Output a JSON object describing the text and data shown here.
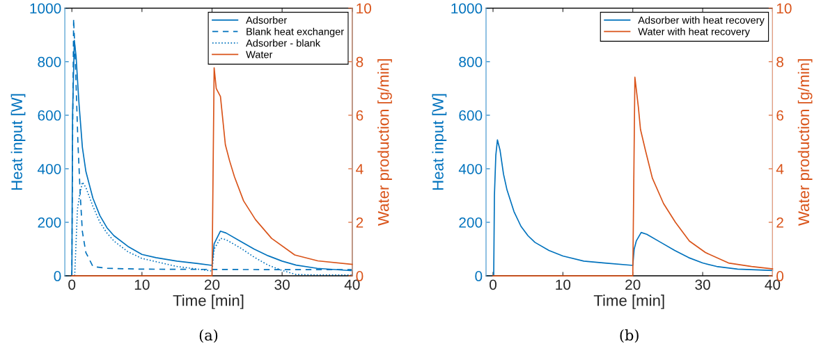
{
  "chart_data": [
    {
      "type": "line",
      "xlabel": "Time [min]",
      "ylabel": "Heat input [W]",
      "y2label": "Water production [g/min]",
      "xlim": [
        -1,
        40
      ],
      "xticks": [
        0,
        10,
        20,
        30,
        40
      ],
      "ylim": [
        0,
        1000
      ],
      "yticks": [
        0,
        200,
        400,
        600,
        800,
        1000
      ],
      "y2lim": [
        0,
        10
      ],
      "y2ticks": [
        0,
        2,
        4,
        6,
        8,
        10
      ],
      "legend": "top right",
      "annotations": [
        "(a)"
      ],
      "series": [
        {
          "name": "Adsorber",
          "color": "#0072bd",
          "line_style": "solid",
          "x": [
            0,
            0.1,
            0.35,
            0.6,
            1,
            1.5,
            2,
            3,
            4,
            5,
            6,
            8,
            10,
            12,
            15,
            18,
            20,
            20.3,
            21.2,
            22,
            24,
            26,
            28,
            30,
            32,
            35,
            40
          ],
          "values": [
            0,
            600,
            880,
            820,
            650,
            480,
            390,
            290,
            225,
            180,
            150,
            110,
            80,
            68,
            55,
            46,
            39,
            120,
            167,
            160,
            130,
            100,
            75,
            55,
            40,
            28,
            19
          ]
        },
        {
          "name": "Blank heat exchanger",
          "color": "#0072bd",
          "line_style": "dashed",
          "x": [
            0,
            0.1,
            0.25,
            0.5,
            0.86,
            1.2,
            1.5,
            2,
            3,
            5,
            10,
            20,
            30,
            40
          ],
          "values": [
            0,
            500,
            960,
            800,
            500,
            300,
            165,
            87,
            35,
            28,
            25,
            24,
            23,
            23
          ]
        },
        {
          "name": "Adsorber - blank",
          "color": "#0072bd",
          "line_style": "dotted",
          "x": [
            0.4,
            0.8,
            1.1,
            1.5,
            2,
            3,
            4,
            5,
            6,
            8,
            10,
            15,
            20,
            20.3,
            21.2,
            22,
            24,
            26,
            28,
            30,
            32,
            35,
            40
          ],
          "values": [
            0,
            250,
            300,
            350,
            330,
            260,
            200,
            160,
            130,
            90,
            65,
            35,
            18,
            100,
            140,
            135,
            105,
            70,
            40,
            20,
            5,
            3,
            3
          ]
        },
        {
          "name": "Water",
          "color": "#d95319",
          "line_style": "solid",
          "axis": "y2",
          "x": [
            0,
            20,
            20.3,
            20.6,
            21.2,
            21.9,
            22.5,
            23.2,
            24.5,
            26.2,
            28.5,
            31.8,
            35.1,
            40
          ],
          "values": [
            0,
            0,
            7.77,
            7.0,
            6.7,
            4.9,
            4.3,
            3.7,
            2.8,
            2.1,
            1.4,
            0.78,
            0.56,
            0.43
          ]
        }
      ]
    },
    {
      "type": "line",
      "xlabel": "Time [min]",
      "ylabel": "Heat input [W]",
      "y2label": "Water production [g/min]",
      "xlim": [
        -1,
        40
      ],
      "xticks": [
        0,
        10,
        20,
        30,
        40
      ],
      "ylim": [
        0,
        1000
      ],
      "yticks": [
        0,
        200,
        400,
        600,
        800,
        1000
      ],
      "y2lim": [
        0,
        10
      ],
      "y2ticks": [
        0,
        2,
        4,
        6,
        8,
        10
      ],
      "legend": "top right",
      "annotations": [
        "(b)"
      ],
      "series": [
        {
          "name": "Adsorber with heat recovery",
          "color": "#0072bd",
          "line_style": "solid",
          "x": [
            0,
            0.1,
            0.2,
            0.4,
            0.63,
            1,
            1.5,
            2,
            3,
            4,
            5,
            6,
            8,
            10,
            13,
            16,
            20,
            20.2,
            20.5,
            21.2,
            22,
            24,
            26,
            28,
            30,
            32,
            35,
            40
          ],
          "values": [
            0,
            0,
            300,
            450,
            508,
            470,
            380,
            321,
            240,
            185,
            150,
            125,
            95,
            74,
            55,
            48,
            39,
            100,
            130,
            162,
            155,
            125,
            95,
            68,
            48,
            35,
            25,
            20
          ]
        },
        {
          "name": "Water with heat recovery",
          "color": "#d95319",
          "line_style": "solid",
          "axis": "y2",
          "x": [
            0,
            20,
            20.3,
            20.8,
            21.1,
            21.8,
            22.8,
            24.4,
            26.1,
            28.1,
            30.4,
            33.7,
            37,
            40
          ],
          "values": [
            0,
            0,
            7.42,
            6.3,
            5.47,
            4.7,
            3.65,
            2.7,
            2.0,
            1.3,
            0.87,
            0.48,
            0.35,
            0.26
          ]
        }
      ]
    }
  ]
}
